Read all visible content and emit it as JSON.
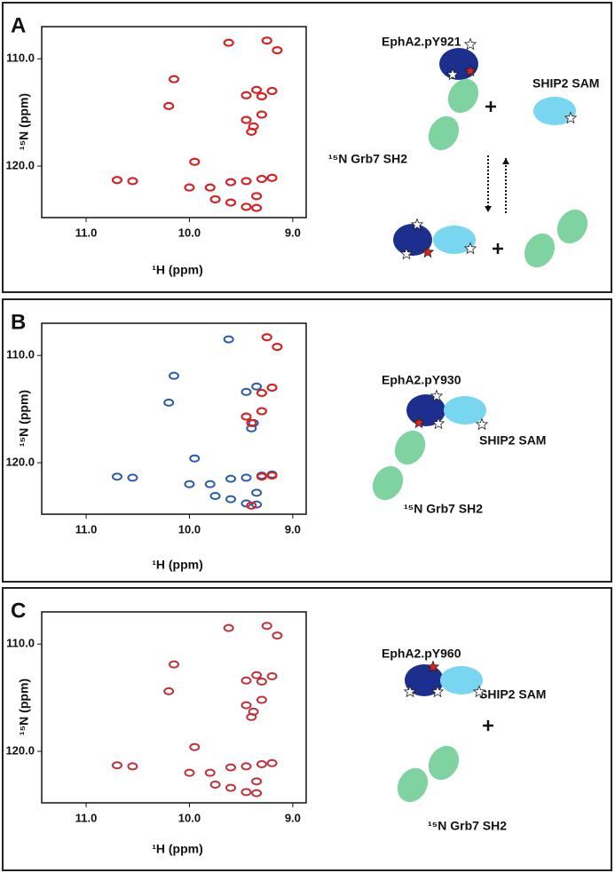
{
  "chart_data": [
    {
      "panel": "A",
      "type": "scatter",
      "xlabel": "¹H (ppm)",
      "ylabel": "¹⁵N (ppm)",
      "xlim": [
        11.43,
        8.87
      ],
      "ylim": [
        107,
        124.8
      ],
      "xticks": [
        {
          "value": 11,
          "label": "11.0"
        },
        {
          "value": 10,
          "label": "10.0"
        },
        {
          "value": 9,
          "label": "9.0"
        }
      ],
      "yticks": [
        {
          "value": 110,
          "label": "110.0"
        },
        {
          "value": 120,
          "label": "120.0"
        }
      ],
      "series": [
        {
          "color": "#2a5caa",
          "x": [
            9.62,
            9.25,
            9.15,
            10.15,
            9.35,
            9.2,
            9.3,
            9.45,
            10.2,
            9.45,
            9.38,
            9.3,
            9.4,
            9.95,
            10.7,
            10.55,
            10.0,
            9.8,
            9.6,
            9.45,
            9.3,
            9.2,
            9.35,
            9.75,
            9.45,
            9.35,
            9.6
          ],
          "y": [
            108.5,
            108.3,
            109.2,
            111.9,
            112.9,
            113.0,
            113.5,
            113.4,
            114.4,
            115.7,
            116.3,
            115.2,
            116.8,
            119.6,
            121.3,
            121.4,
            122.0,
            122.0,
            121.5,
            121.4,
            121.2,
            121.1,
            122.8,
            123.1,
            123.8,
            123.9,
            123.4
          ]
        },
        {
          "color": "#e0201b",
          "x": [
            9.62,
            9.25,
            9.15,
            10.15,
            9.35,
            9.2,
            9.3,
            9.45,
            10.2,
            9.45,
            9.38,
            9.3,
            9.4,
            9.95,
            10.7,
            10.55,
            10.0,
            9.8,
            9.6,
            9.45,
            9.3,
            9.2,
            9.35,
            9.75,
            9.45,
            9.35,
            9.6
          ],
          "y": [
            108.5,
            108.3,
            109.2,
            111.9,
            112.9,
            113.0,
            113.5,
            113.4,
            114.4,
            115.7,
            116.3,
            115.2,
            116.8,
            119.6,
            121.3,
            121.4,
            122.0,
            122.0,
            121.5,
            121.4,
            121.2,
            121.1,
            122.8,
            123.1,
            123.8,
            123.9,
            123.4
          ]
        }
      ],
      "annotations": [
        "EphA2.pY921",
        "SHIP2 SAM",
        "¹⁵N Grb7 SH2"
      ]
    },
    {
      "panel": "B",
      "type": "scatter",
      "xlabel": "¹H (ppm)",
      "ylabel": "¹⁵N (ppm)",
      "xlim": [
        11.43,
        8.87
      ],
      "ylim": [
        107,
        124.8
      ],
      "xticks": [
        {
          "value": 11,
          "label": "11.0"
        },
        {
          "value": 10,
          "label": "10.0"
        },
        {
          "value": 9,
          "label": "9.0"
        }
      ],
      "yticks": [
        {
          "value": 110,
          "label": "110.0"
        },
        {
          "value": 120,
          "label": "120.0"
        }
      ],
      "series": [
        {
          "color": "#2a5caa",
          "x": [
            9.62,
            9.25,
            9.15,
            10.15,
            9.35,
            9.2,
            9.3,
            9.45,
            10.2,
            9.45,
            9.38,
            9.3,
            9.4,
            9.95,
            10.7,
            10.55,
            10.0,
            9.8,
            9.6,
            9.45,
            9.3,
            9.2,
            9.35,
            9.75,
            9.45,
            9.35,
            9.6
          ],
          "y": [
            108.5,
            108.3,
            109.2,
            111.9,
            112.9,
            113.0,
            113.5,
            113.4,
            114.4,
            115.7,
            116.3,
            115.2,
            116.8,
            119.6,
            121.3,
            121.4,
            122.0,
            122.0,
            121.5,
            121.4,
            121.2,
            121.1,
            122.8,
            123.1,
            123.8,
            123.9,
            123.4
          ]
        },
        {
          "color": "#e0201b",
          "x": [
            9.25,
            9.15,
            9.2,
            9.3,
            9.45,
            9.4,
            9.3,
            9.2,
            9.3,
            9.4
          ],
          "y": [
            108.3,
            109.2,
            113.0,
            113.5,
            115.7,
            116.3,
            115.2,
            121.2,
            121.3,
            124.0
          ]
        }
      ],
      "annotations": [
        "EphA2.pY930",
        "SHIP2 SAM",
        "¹⁵N Grb7 SH2"
      ]
    },
    {
      "panel": "C",
      "type": "scatter",
      "xlabel": "¹H (ppm)",
      "ylabel": "¹⁵N (ppm)",
      "xlim": [
        11.43,
        8.87
      ],
      "ylim": [
        107,
        124.8
      ],
      "xticks": [
        {
          "value": 11,
          "label": "11.0"
        },
        {
          "value": 10,
          "label": "10.0"
        },
        {
          "value": 9,
          "label": "9.0"
        }
      ],
      "yticks": [
        {
          "value": 110,
          "label": "110.0"
        },
        {
          "value": 120,
          "label": "120.0"
        }
      ],
      "series": [
        {
          "color": "#c0313a",
          "x": [
            9.62,
            9.25,
            9.15,
            10.15,
            9.35,
            9.2,
            9.3,
            9.45,
            10.2,
            9.45,
            9.38,
            9.3,
            9.4,
            9.95,
            10.7,
            10.55,
            10.0,
            9.8,
            9.6,
            9.45,
            9.3,
            9.2,
            9.35,
            9.75,
            9.45,
            9.35,
            9.6
          ],
          "y": [
            108.5,
            108.3,
            109.2,
            111.9,
            112.9,
            113.0,
            113.5,
            113.4,
            114.4,
            115.7,
            116.3,
            115.2,
            116.8,
            119.6,
            121.3,
            121.4,
            122.0,
            122.0,
            121.5,
            121.4,
            121.2,
            121.1,
            122.8,
            123.1,
            123.8,
            123.9,
            123.4
          ]
        }
      ],
      "annotations": [
        "EphA2.pY960",
        "SHIP2 SAM",
        "¹⁵N Grb7 SH2"
      ]
    }
  ]
}
